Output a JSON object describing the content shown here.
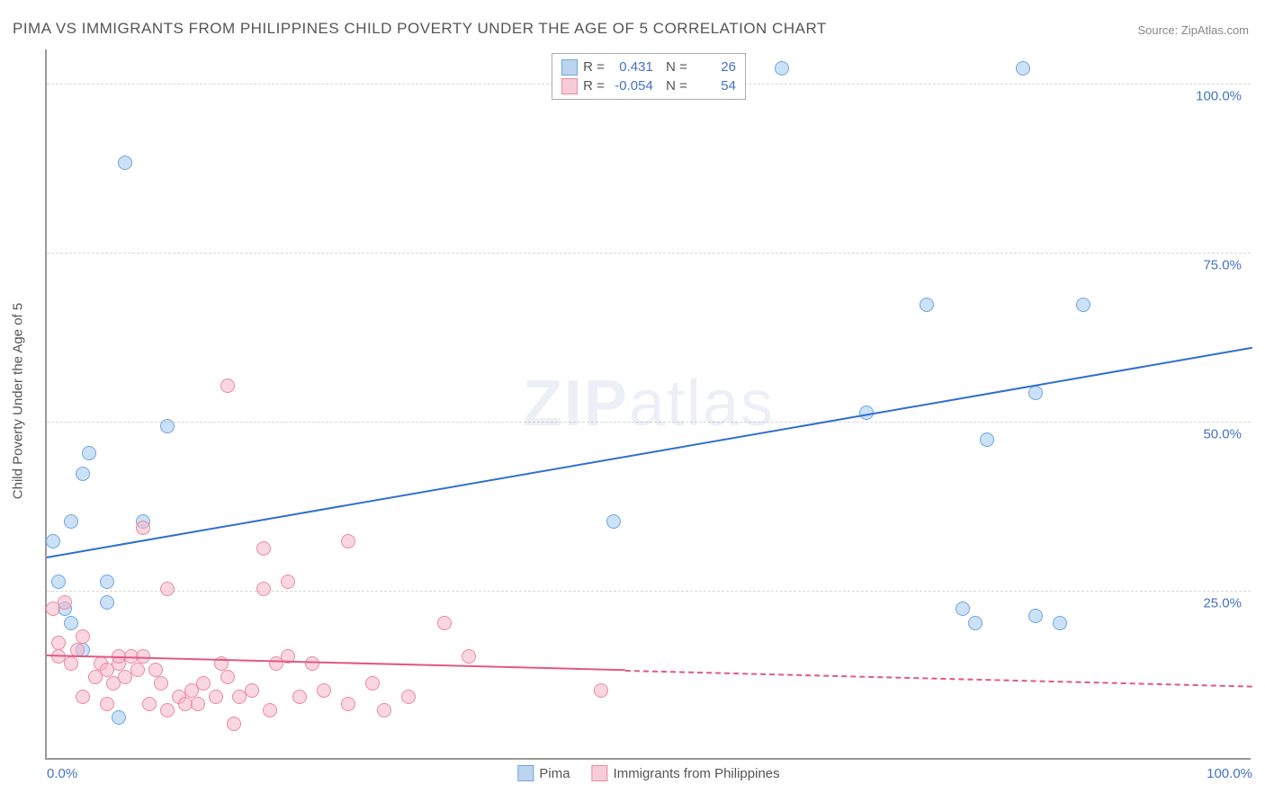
{
  "title": "PIMA VS IMMIGRANTS FROM PHILIPPINES CHILD POVERTY UNDER THE AGE OF 5 CORRELATION CHART",
  "source": "Source: ZipAtlas.com",
  "ylabel": "Child Poverty Under the Age of 5",
  "watermark": {
    "zip": "ZIP",
    "atlas": "atlas"
  },
  "chart": {
    "type": "scatter",
    "background_color": "#ffffff",
    "grid_color": "#d8d8d8",
    "axis_color": "#999999",
    "xlim": [
      0,
      100
    ],
    "ylim": [
      0,
      105
    ],
    "xticks": [
      {
        "value": 0,
        "label": "0.0%"
      },
      {
        "value": 100,
        "label": "100.0%"
      }
    ],
    "yticks": [
      {
        "value": 25,
        "label": "25.0%"
      },
      {
        "value": 50,
        "label": "50.0%"
      },
      {
        "value": 75,
        "label": "75.0%"
      },
      {
        "value": 100,
        "label": "100.0%"
      }
    ],
    "tick_color": "#4472c4",
    "tick_fontsize": 15,
    "series": [
      {
        "name": "Pima",
        "swatch_fill": "#bcd4ef",
        "swatch_stroke": "#6fa5de",
        "marker_fill": "rgba(160, 200, 240, 0.55)",
        "marker_stroke": "#6fa5de",
        "marker_radius": 8,
        "R": "0.431",
        "N": "26",
        "regression": {
          "x0": 0,
          "y0": 30,
          "x1": 100,
          "y1": 61,
          "solid_end_x": 100,
          "color": "#2f6fd0",
          "width": 2
        },
        "points": [
          {
            "x": 0.5,
            "y": 32
          },
          {
            "x": 1,
            "y": 26
          },
          {
            "x": 1.5,
            "y": 22
          },
          {
            "x": 2,
            "y": 35
          },
          {
            "x": 2,
            "y": 20
          },
          {
            "x": 3,
            "y": 16
          },
          {
            "x": 3,
            "y": 42
          },
          {
            "x": 3.5,
            "y": 45
          },
          {
            "x": 5,
            "y": 26
          },
          {
            "x": 5,
            "y": 23
          },
          {
            "x": 6,
            "y": 6
          },
          {
            "x": 6.5,
            "y": 88
          },
          {
            "x": 8,
            "y": 35
          },
          {
            "x": 10,
            "y": 49
          },
          {
            "x": 47,
            "y": 35
          },
          {
            "x": 61,
            "y": 102
          },
          {
            "x": 68,
            "y": 51
          },
          {
            "x": 73,
            "y": 67
          },
          {
            "x": 76,
            "y": 22
          },
          {
            "x": 77,
            "y": 20
          },
          {
            "x": 78,
            "y": 47
          },
          {
            "x": 81,
            "y": 102
          },
          {
            "x": 82,
            "y": 21
          },
          {
            "x": 82,
            "y": 54
          },
          {
            "x": 84,
            "y": 20
          },
          {
            "x": 86,
            "y": 67
          }
        ]
      },
      {
        "name": "Immigrants from Philippines",
        "swatch_fill": "#f6cdd6",
        "swatch_stroke": "#e98aa0",
        "marker_fill": "rgba(245, 180, 200, 0.55)",
        "marker_stroke": "#e98aa0",
        "marker_radius": 8,
        "R": "-0.054",
        "N": "54",
        "regression": {
          "x0": 0,
          "y0": 15.5,
          "x1": 100,
          "y1": 11,
          "solid_end_x": 48,
          "color": "#e05a80",
          "width": 2
        },
        "points": [
          {
            "x": 0.5,
            "y": 22
          },
          {
            "x": 1,
            "y": 15
          },
          {
            "x": 1,
            "y": 17
          },
          {
            "x": 1.5,
            "y": 23
          },
          {
            "x": 2,
            "y": 14
          },
          {
            "x": 2.5,
            "y": 16
          },
          {
            "x": 3,
            "y": 18
          },
          {
            "x": 3,
            "y": 9
          },
          {
            "x": 4,
            "y": 12
          },
          {
            "x": 4.5,
            "y": 14
          },
          {
            "x": 5,
            "y": 13
          },
          {
            "x": 5,
            "y": 8
          },
          {
            "x": 5.5,
            "y": 11
          },
          {
            "x": 6,
            "y": 14
          },
          {
            "x": 6,
            "y": 15
          },
          {
            "x": 6.5,
            "y": 12
          },
          {
            "x": 7,
            "y": 15
          },
          {
            "x": 7.5,
            "y": 13
          },
          {
            "x": 8,
            "y": 34
          },
          {
            "x": 8,
            "y": 15
          },
          {
            "x": 8.5,
            "y": 8
          },
          {
            "x": 9,
            "y": 13
          },
          {
            "x": 9.5,
            "y": 11
          },
          {
            "x": 10,
            "y": 25
          },
          {
            "x": 10,
            "y": 7
          },
          {
            "x": 11,
            "y": 9
          },
          {
            "x": 11.5,
            "y": 8
          },
          {
            "x": 12,
            "y": 10
          },
          {
            "x": 12.5,
            "y": 8
          },
          {
            "x": 13,
            "y": 11
          },
          {
            "x": 14,
            "y": 9
          },
          {
            "x": 14.5,
            "y": 14
          },
          {
            "x": 15,
            "y": 55
          },
          {
            "x": 15,
            "y": 12
          },
          {
            "x": 15.5,
            "y": 5
          },
          {
            "x": 16,
            "y": 9
          },
          {
            "x": 17,
            "y": 10
          },
          {
            "x": 18,
            "y": 25
          },
          {
            "x": 18,
            "y": 31
          },
          {
            "x": 18.5,
            "y": 7
          },
          {
            "x": 19,
            "y": 14
          },
          {
            "x": 20,
            "y": 15
          },
          {
            "x": 20,
            "y": 26
          },
          {
            "x": 21,
            "y": 9
          },
          {
            "x": 22,
            "y": 14
          },
          {
            "x": 23,
            "y": 10
          },
          {
            "x": 25,
            "y": 32
          },
          {
            "x": 25,
            "y": 8
          },
          {
            "x": 27,
            "y": 11
          },
          {
            "x": 28,
            "y": 7
          },
          {
            "x": 30,
            "y": 9
          },
          {
            "x": 33,
            "y": 20
          },
          {
            "x": 35,
            "y": 15
          },
          {
            "x": 46,
            "y": 10
          }
        ]
      }
    ]
  }
}
